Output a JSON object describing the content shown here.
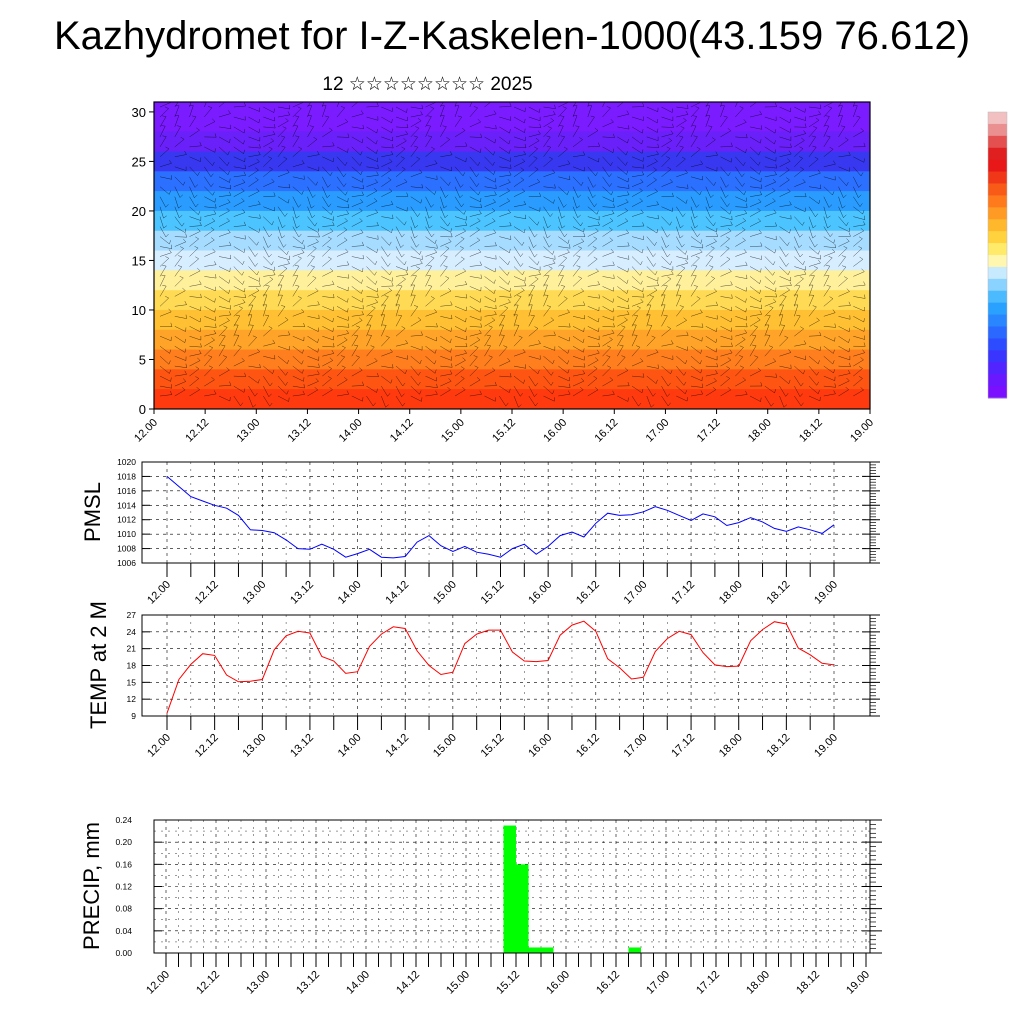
{
  "header": {
    "title": "Kazhydromet for I-Z-Kaskelen-1000(43.159 76.612)",
    "subtitle": "12 ☆☆☆☆☆☆☆☆ 2025"
  },
  "chart_data": [
    {
      "type": "heatmap",
      "panel": "vertical-profile",
      "x_ticks": [
        "12.00",
        "12.12",
        "13.00",
        "13.12",
        "14.00",
        "14.12",
        "15.00",
        "15.12",
        "16.00",
        "16.12",
        "17.00",
        "17.12",
        "18.00",
        "18.12",
        "19.00"
      ],
      "yticks": [
        0,
        5,
        10,
        15,
        20,
        25,
        30
      ],
      "ylim": [
        0,
        31
      ],
      "colormap": [
        "#7000ff",
        "#3030ff",
        "#2a6cff",
        "#28a8ff",
        "#52d2ff",
        "#bfe8ff",
        "#fff29a",
        "#ffe06a",
        "#ffb830",
        "#ff8820",
        "#ff5010",
        "#e81010"
      ],
      "levels_top_to_bottom": [
        30,
        28,
        26,
        24,
        22,
        20,
        18,
        16,
        14,
        12,
        10,
        8,
        6,
        4,
        2,
        0
      ],
      "band_colors_top_to_bottom": [
        "#7a1cff",
        "#6a20f8",
        "#3838f0",
        "#2c70ff",
        "#2a9cff",
        "#4cc4ff",
        "#a6dcff",
        "#d6eeff",
        "#fff19c",
        "#ffda55",
        "#ffc033",
        "#ffa428",
        "#ff7e1e",
        "#ff5512",
        "#ff3a0e",
        "#e81c10"
      ],
      "overlay": "wind-barbs"
    },
    {
      "type": "line",
      "panel": "pmsl",
      "ylabel": "PMSL",
      "yticks": [
        1006,
        1008,
        1010,
        1012,
        1014,
        1016,
        1018,
        1020
      ],
      "ylim": [
        1006,
        1020
      ],
      "x_ticks": [
        "12.00",
        "12.12",
        "13.00",
        "13.12",
        "14.00",
        "14.12",
        "15.00",
        "15.12",
        "16.00",
        "16.12",
        "17.00",
        "17.12",
        "18.00",
        "18.12",
        "19.00"
      ],
      "series_color": "#0000ff",
      "values": [
        1018.0,
        1016.6,
        1015.2,
        1014.6,
        1014.0,
        1013.6,
        1012.6,
        1010.6,
        1010.5,
        1010.2,
        1009.2,
        1008.0,
        1007.9,
        1008.6,
        1007.9,
        1006.8,
        1007.3,
        1007.9,
        1006.8,
        1006.7,
        1006.9,
        1008.9,
        1009.8,
        1008.4,
        1007.6,
        1008.3,
        1007.5,
        1007.2,
        1006.8,
        1008.0,
        1008.6,
        1007.2,
        1008.3,
        1009.8,
        1010.3,
        1009.6,
        1011.5,
        1012.9,
        1012.6,
        1012.7,
        1013.1,
        1013.8,
        1013.3,
        1012.6,
        1011.9,
        1012.8,
        1012.4,
        1011.2,
        1011.6,
        1012.3,
        1011.7,
        1010.8,
        1010.4,
        1011.0,
        1010.6,
        1010.1,
        1011.3
      ]
    },
    {
      "type": "line",
      "panel": "temperature",
      "ylabel": "TEMP at 2 M",
      "yticks": [
        9,
        12,
        15,
        18,
        21,
        24,
        27
      ],
      "ylim": [
        9,
        27
      ],
      "x_ticks": [
        "12.00",
        "12.12",
        "13.00",
        "13.12",
        "14.00",
        "14.12",
        "15.00",
        "15.12",
        "16.00",
        "16.12",
        "17.00",
        "17.12",
        "18.00",
        "18.12",
        "19.00"
      ],
      "series_color": "#ff0000",
      "values": [
        9.5,
        15.5,
        18.2,
        20.1,
        19.8,
        16.3,
        15.1,
        15.2,
        15.5,
        20.8,
        23.3,
        24.1,
        23.8,
        19.6,
        18.8,
        16.6,
        16.9,
        21.4,
        23.6,
        24.9,
        24.6,
        20.6,
        18.0,
        16.4,
        16.8,
        21.9,
        23.6,
        24.3,
        24.3,
        20.4,
        18.8,
        18.7,
        18.9,
        23.4,
        25.2,
        25.9,
        24.1,
        19.2,
        17.6,
        15.6,
        15.9,
        20.5,
        22.8,
        24.1,
        23.5,
        20.3,
        18.1,
        17.8,
        17.9,
        22.4,
        24.4,
        25.8,
        25.4,
        21.1,
        19.9,
        18.4,
        18.1
      ]
    },
    {
      "type": "bar",
      "panel": "precipitation",
      "ylabel": "PRECIP, mm",
      "yticks": [
        "0.00",
        "0.04",
        "0.08",
        "0.12",
        "0.16",
        "0.20",
        "0.24"
      ],
      "ylim": [
        0,
        0.24
      ],
      "x_ticks": [
        "12.00",
        "12.12",
        "13.00",
        "13.12",
        "14.00",
        "14.12",
        "15.00",
        "15.12",
        "16.00",
        "16.12",
        "17.00",
        "17.12",
        "18.00",
        "18.12",
        "19.00"
      ],
      "bar_color": "#00ff00",
      "bars": [
        {
          "x_hours": 81,
          "value": 0.23
        },
        {
          "x_hours": 84,
          "value": 0.16
        },
        {
          "x_hours": 87,
          "value": 0.01
        },
        {
          "x_hours": 90,
          "value": 0.01
        },
        {
          "x_hours": 111,
          "value": 0.01
        }
      ]
    }
  ]
}
